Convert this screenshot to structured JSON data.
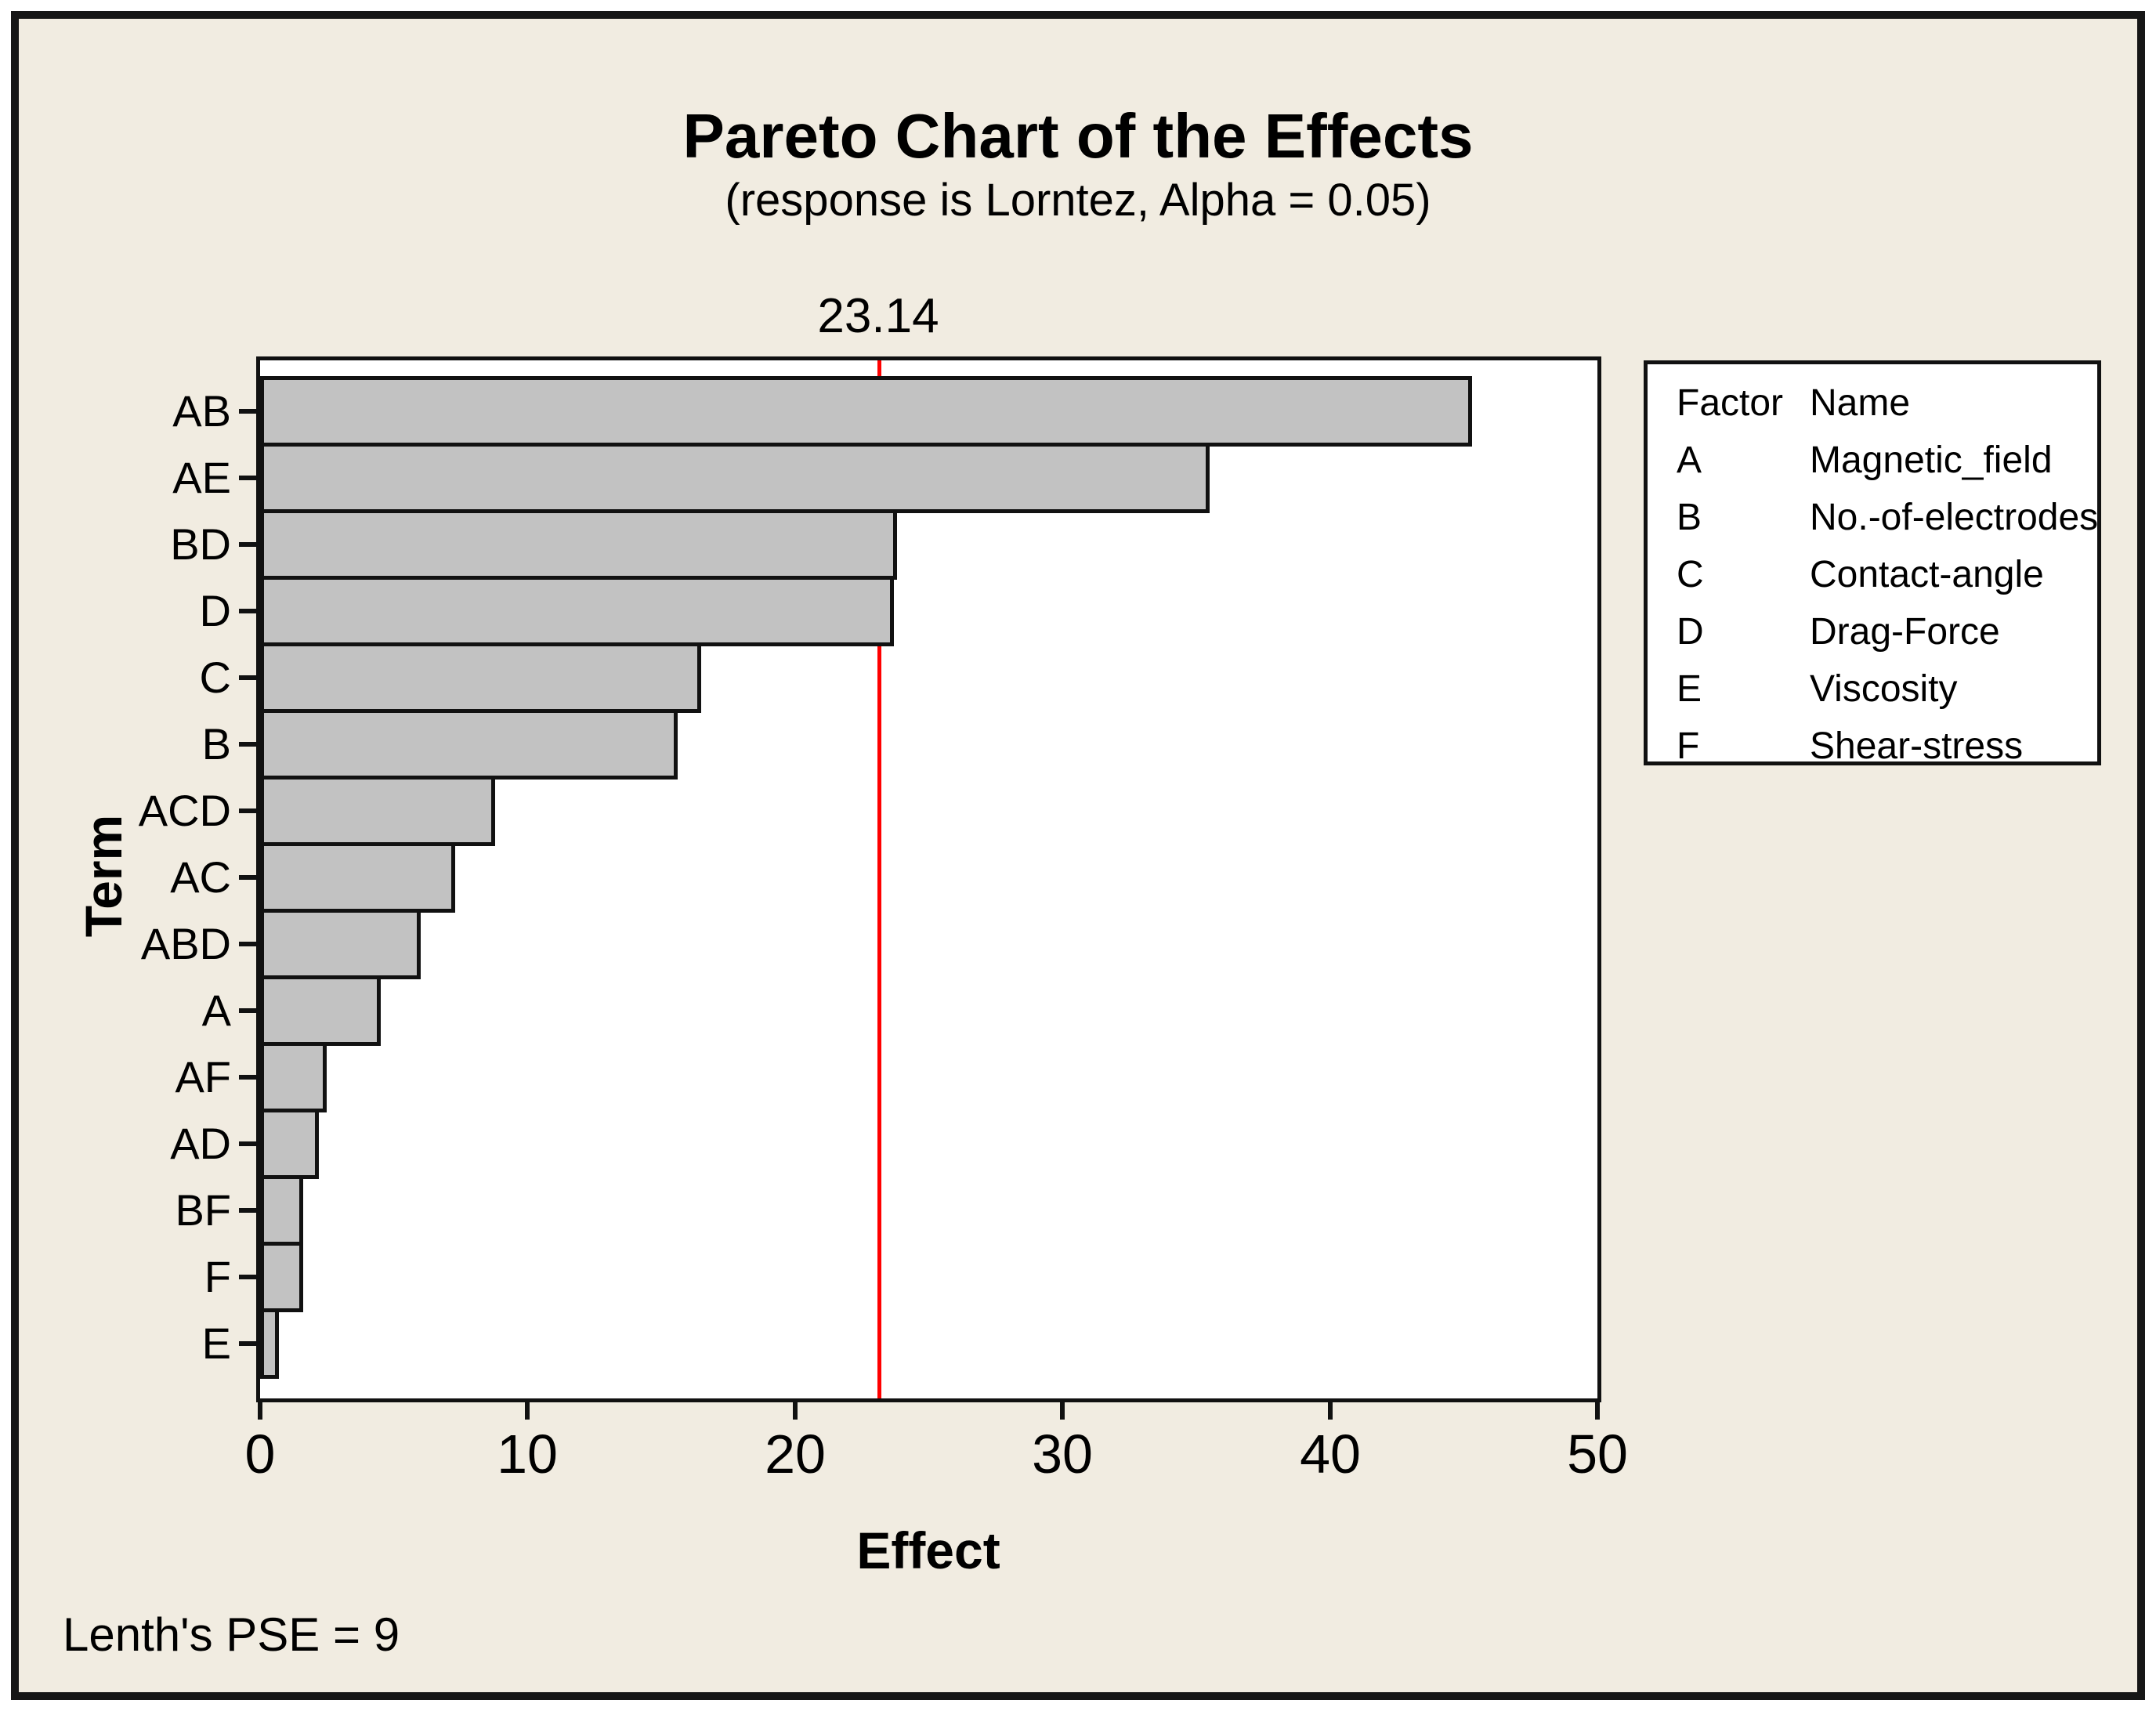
{
  "header": {
    "title": "Pareto Chart of the Effects",
    "subtitle": "(response is Lorntez, Alpha = 0.05)"
  },
  "footnote": "Lenth's PSE = 9",
  "chart_data": {
    "type": "bar",
    "orientation": "horizontal",
    "title": "Pareto Chart of the Effects",
    "subtitle": "(response is Lorntez, Alpha = 0.05)",
    "categories": [
      "AB",
      "AE",
      "BD",
      "D",
      "C",
      "B",
      "ACD",
      "AC",
      "ABD",
      "A",
      "AF",
      "AD",
      "BF",
      "F",
      "E"
    ],
    "values": [
      45.3,
      35.5,
      23.8,
      23.7,
      16.5,
      15.6,
      8.8,
      7.3,
      6.0,
      4.5,
      2.5,
      2.2,
      1.6,
      1.6,
      0.7
    ],
    "xlabel": "Effect",
    "ylabel": "Term",
    "xlim": [
      0,
      50
    ],
    "x_ticks": [
      0,
      10,
      20,
      30,
      40,
      50
    ],
    "grid": false,
    "reference_line": {
      "value": 23.14,
      "label": "23.14",
      "color": "#ff0000"
    },
    "bar_color": "#c2c2c2",
    "bar_border_color": "#111111",
    "legend_position": "right"
  },
  "legend": {
    "headers": [
      "Factor",
      "Name"
    ],
    "rows": [
      {
        "factor": "A",
        "name": "Magnetic_field"
      },
      {
        "factor": "B",
        "name": "No.-of-electrodes"
      },
      {
        "factor": "C",
        "name": "Contact-angle"
      },
      {
        "factor": "D",
        "name": "Drag-Force"
      },
      {
        "factor": "E",
        "name": "Viscosity"
      },
      {
        "factor": "F",
        "name": "Shear-stress"
      }
    ]
  },
  "colors": {
    "canvas_background": "#ffffff",
    "figure_background": "#f1ece1",
    "plot_background": "#ffffff",
    "frame_border": "#161616",
    "bar_fill": "#c2c2c2",
    "line_and_text": "#111111",
    "reference_line": "#ff0000"
  }
}
